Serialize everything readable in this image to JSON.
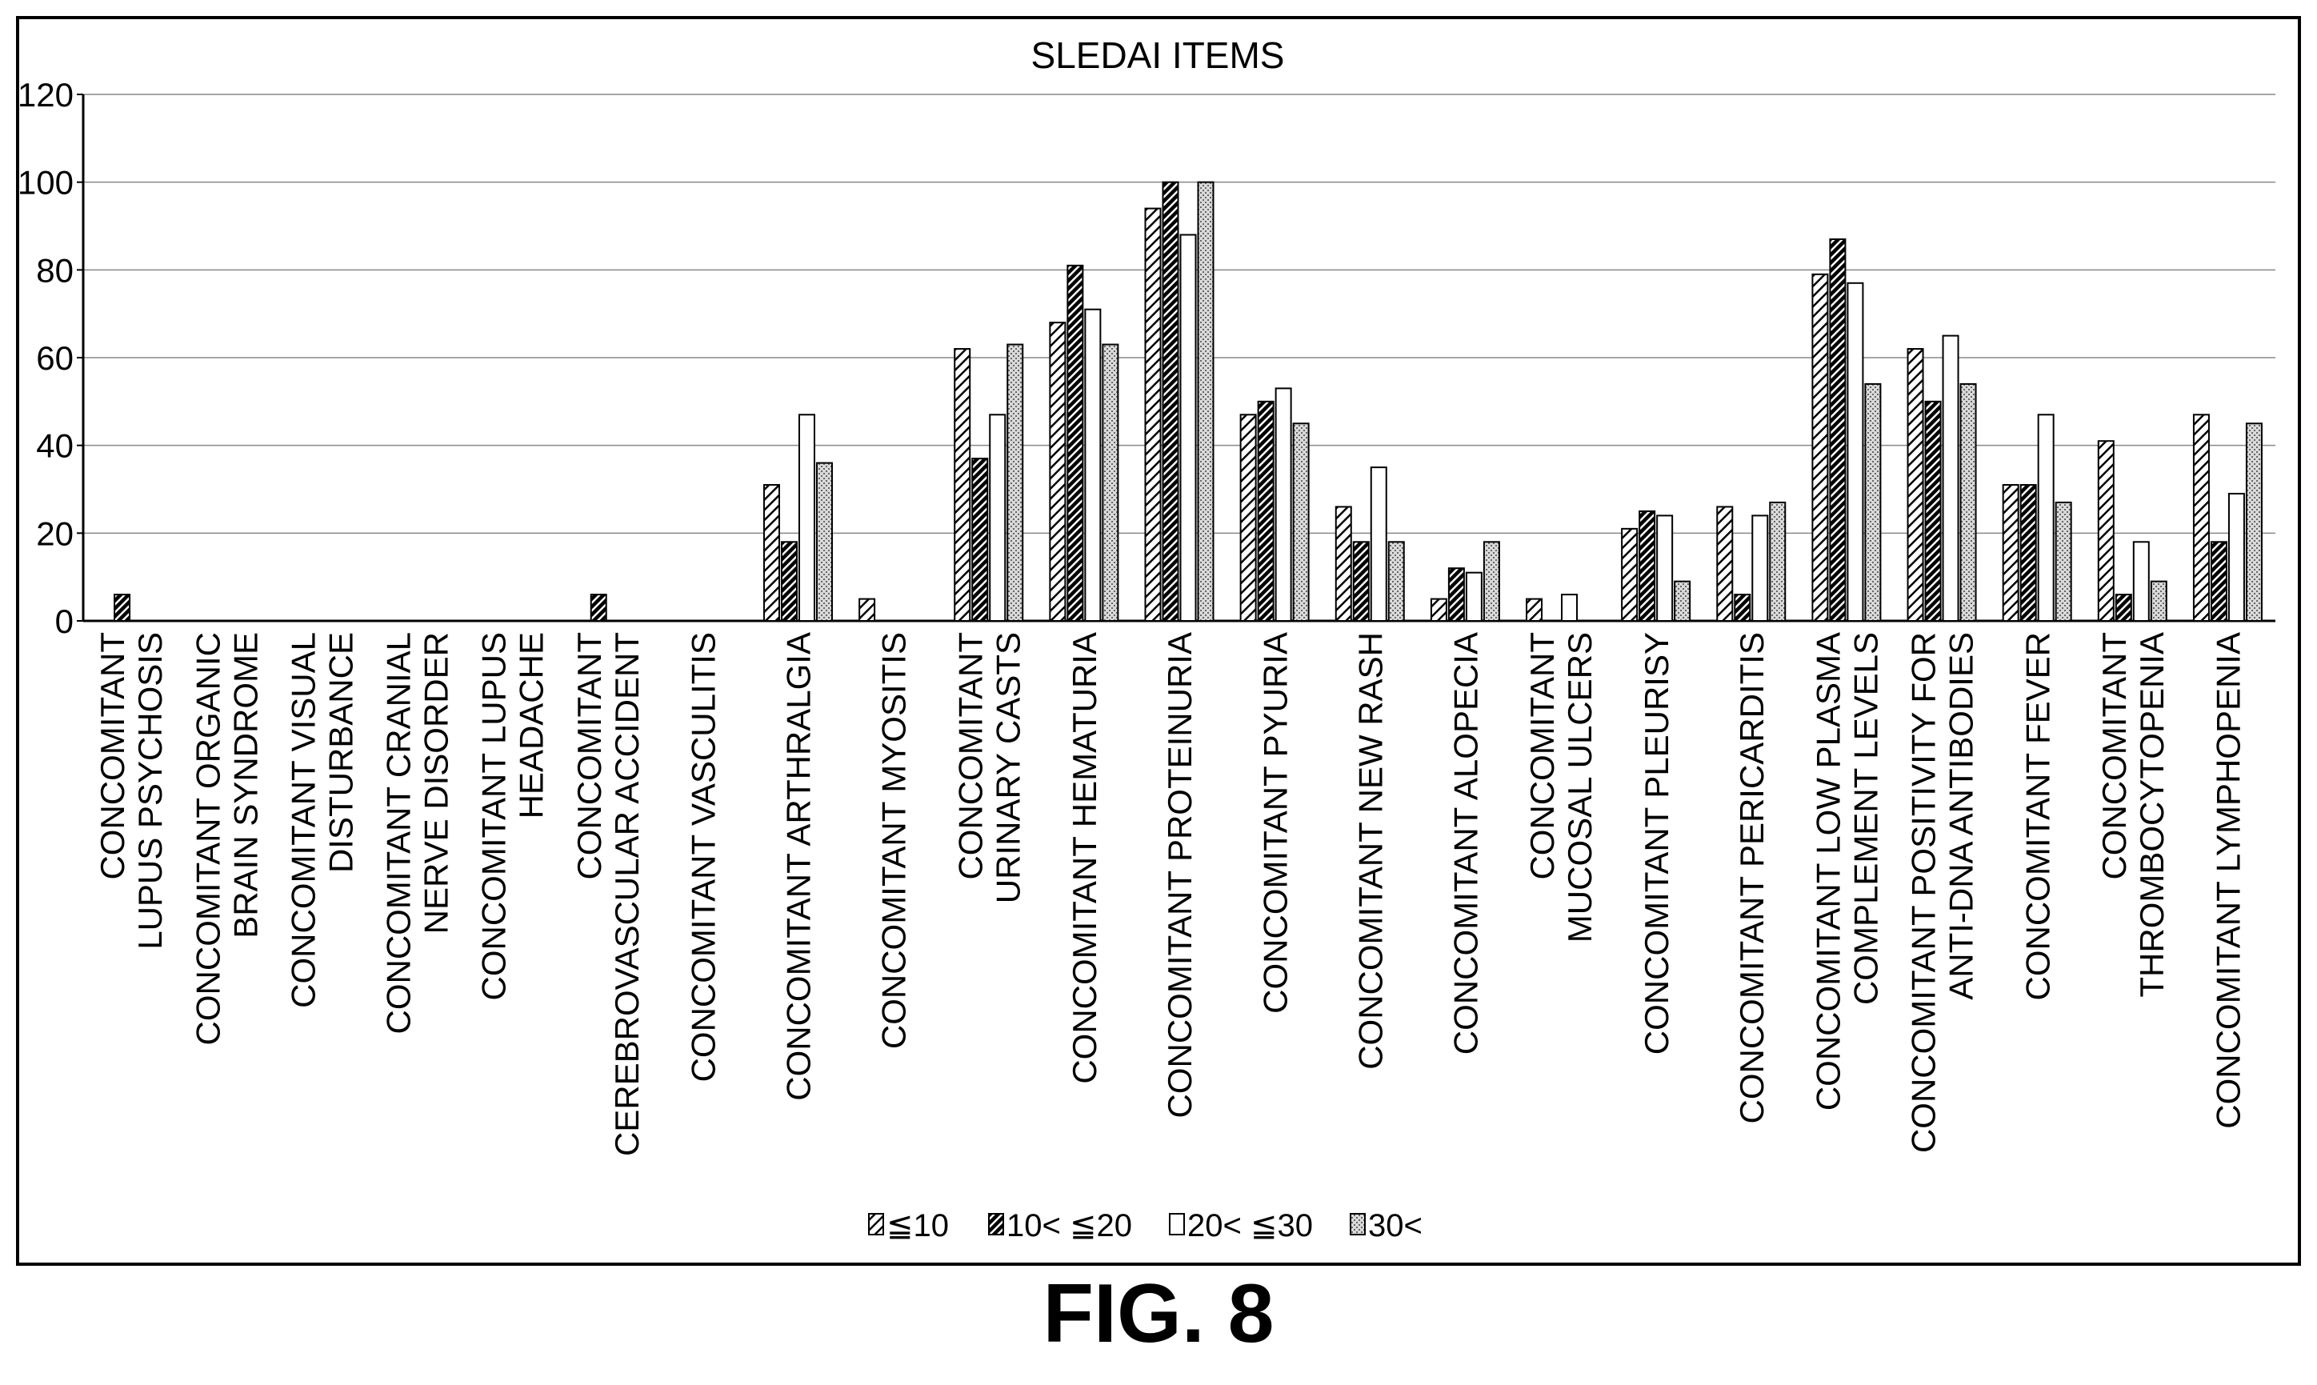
{
  "figure_label": "FIG. 8",
  "chart_data": {
    "type": "bar",
    "title": "SLEDAI ITEMS",
    "xlabel": "",
    "ylabel": "",
    "ylim": [
      0,
      120
    ],
    "yticks": [
      0,
      20,
      40,
      60,
      80,
      100,
      120
    ],
    "grid": true,
    "legend_position": "bottom-center",
    "categories": [
      [
        "CONCOMITANT",
        "LUPUS PSYCHOSIS"
      ],
      [
        "CONCOMITANT ORGANIC",
        "BRAIN SYNDROME"
      ],
      [
        "CONCOMITANT VISUAL",
        "DISTURBANCE"
      ],
      [
        "CONCOMITANT CRANIAL",
        "NERVE DISORDER"
      ],
      [
        "CONCOMITANT LUPUS",
        "HEADACHE"
      ],
      [
        "CONCOMITANT",
        "CEREBROVASCULAR ACCIDENT"
      ],
      [
        "CONCOMITANT VASCULITIS"
      ],
      [
        "CONCOMITANT ARTHRALGIA"
      ],
      [
        "CONCOMITANT MYOSITIS"
      ],
      [
        "CONCOMITANT",
        "URINARY CASTS"
      ],
      [
        "CONCOMITANT HEMATURIA"
      ],
      [
        "CONCOMITANT PROTEINURIA"
      ],
      [
        "CONCOMITANT PYURIA"
      ],
      [
        "CONCOMITANT NEW RASH"
      ],
      [
        "CONCOMITANT ALOPECIA"
      ],
      [
        "CONCOMITANT",
        "MUCOSAL ULCERS"
      ],
      [
        "CONCOMITANT PLEURISY"
      ],
      [
        "CONCOMITANT PERICARDITIS"
      ],
      [
        "CONCOMITANT LOW PLASMA",
        "COMPLEMENT LEVELS"
      ],
      [
        "CONCOMITANT POSITIVITY FOR",
        "ANTI-DNA ANTIBODIES"
      ],
      [
        "CONCOMITANT FEVER"
      ],
      [
        "CONCOMITANT",
        "THROMBOCYTOPENIA"
      ],
      [
        "CONCOMITANT LYMPHOPENIA"
      ]
    ],
    "series": [
      {
        "name": "≦10",
        "pattern": "diagonal-light",
        "values": [
          0,
          0,
          0,
          0,
          0,
          0,
          0,
          31,
          5,
          62,
          68,
          94,
          47,
          26,
          5,
          5,
          21,
          26,
          79,
          62,
          31,
          41,
          47
        ]
      },
      {
        "name": "10< ≦20",
        "pattern": "diagonal-dark",
        "values": [
          6,
          0,
          0,
          0,
          0,
          6,
          0,
          18,
          0,
          37,
          81,
          100,
          50,
          18,
          12,
          0,
          25,
          6,
          87,
          50,
          31,
          6,
          18
        ]
      },
      {
        "name": "20< ≦30",
        "pattern": "white",
        "values": [
          0,
          0,
          0,
          0,
          0,
          0,
          0,
          47,
          0,
          47,
          71,
          88,
          53,
          35,
          11,
          6,
          24,
          24,
          77,
          65,
          47,
          18,
          29
        ]
      },
      {
        "name": "30<",
        "pattern": "dotted",
        "values": [
          0,
          0,
          0,
          0,
          0,
          0,
          0,
          36,
          0,
          63,
          63,
          100,
          45,
          18,
          18,
          0,
          9,
          27,
          54,
          54,
          27,
          9,
          45
        ]
      }
    ]
  }
}
